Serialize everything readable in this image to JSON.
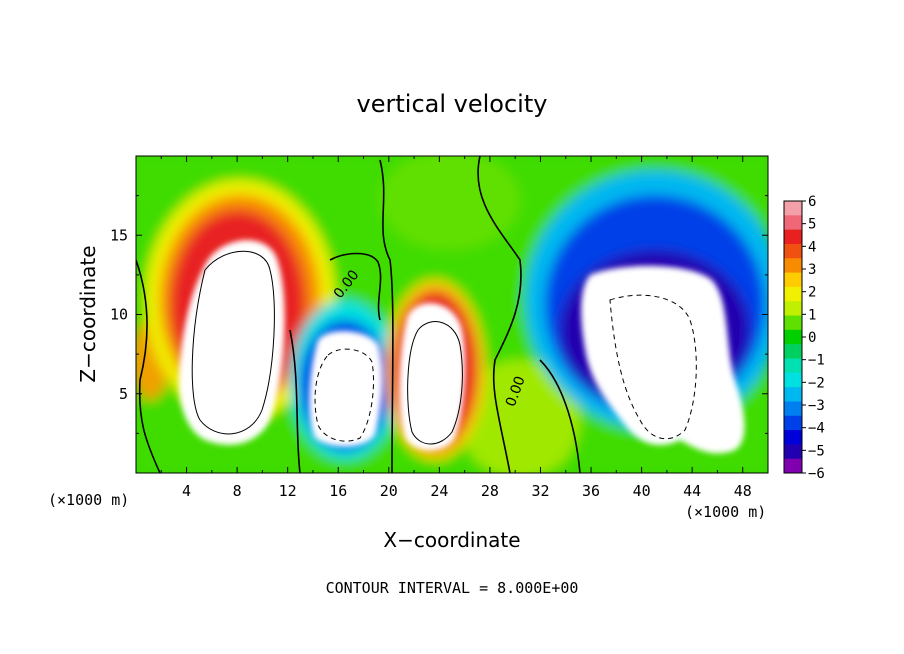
{
  "chart_data": {
    "type": "heatmap",
    "title": "vertical velocity",
    "xlabel": "X−coordinate",
    "ylabel": "Z−coordinate",
    "x_unit_left": "(×1000 m)",
    "x_unit_right": "(×1000 m)",
    "footer": "CONTOUR INTERVAL = 8.000E+00",
    "xlim": [
      0,
      50
    ],
    "ylim": [
      0,
      20
    ],
    "x_ticks": [
      "4",
      "8",
      "12",
      "16",
      "20",
      "24",
      "28",
      "32",
      "36",
      "40",
      "44",
      "48"
    ],
    "y_ticks": [
      "5",
      "10",
      "15"
    ],
    "colorbar": {
      "min": -6,
      "max": 6,
      "labels": [
        "6",
        "5",
        "4",
        "3",
        "2",
        "1",
        "0",
        "−1",
        "−2",
        "−3",
        "−4",
        "−5",
        "−6"
      ],
      "colors": [
        "#f4a0a8",
        "#f06878",
        "#e82020",
        "#f05010",
        "#f88c00",
        "#ffcc00",
        "#f0f000",
        "#c0f000",
        "#60e000",
        "#00d000",
        "#00d060",
        "#00e0b0",
        "#00e0e0",
        "#00b8f0",
        "#0080f0",
        "#0040e8",
        "#0000d8",
        "#2000b0",
        "#8000b0"
      ],
      "over_color": "#ffffff",
      "under_color": "#ffffff"
    },
    "features": [
      {
        "kind": "updraft",
        "x_center": 8,
        "z_center": 10,
        "peak": ">6"
      },
      {
        "kind": "downdraft",
        "x_center": 16.5,
        "z_center": 5.5,
        "peak": "<-6"
      },
      {
        "kind": "updraft",
        "x_center": 23.5,
        "z_center": 6,
        "peak": ">6"
      },
      {
        "kind": "downdraft",
        "x_center": 42,
        "z_center": 8,
        "peak": "<-6"
      }
    ],
    "contour_labels": [
      "0.00",
      "0.00"
    ],
    "grid": false,
    "legend_position": "right"
  }
}
